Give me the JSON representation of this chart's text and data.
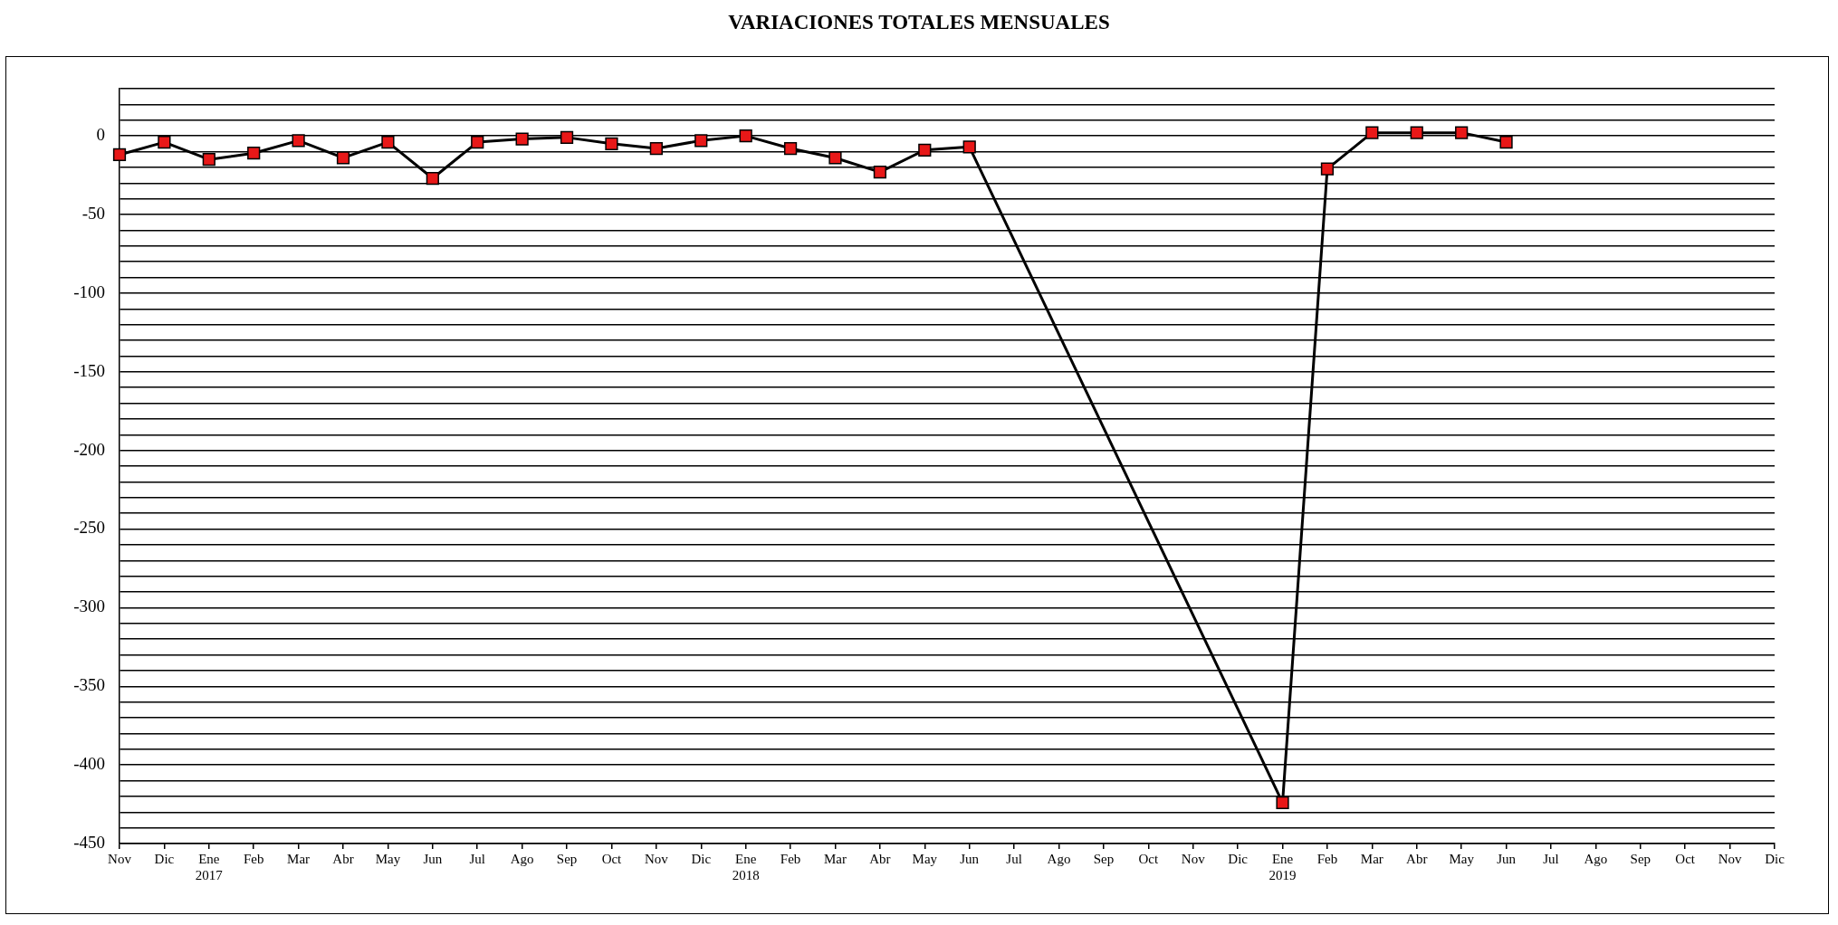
{
  "chart_data": {
    "type": "line",
    "title": "VARIACIONES TOTALES MENSUALES",
    "categories": [
      "Nov",
      "Dic",
      "Ene\n2017",
      "Feb",
      "Mar",
      "Abr",
      "May",
      "Jun",
      "Jul",
      "Ago",
      "Sep",
      "Oct",
      "Nov",
      "Dic",
      "Ene\n2018",
      "Feb",
      "Mar",
      "Abr",
      "May",
      "Jun",
      "Jul",
      "Ago",
      "Sep",
      "Oct",
      "Nov",
      "Dic",
      "Ene\n2019",
      "Feb",
      "Mar",
      "Abr",
      "May",
      "Jun",
      "Jul",
      "Ago",
      "Sep",
      "Oct",
      "Nov",
      "Dic"
    ],
    "series": [
      {
        "color": "#000000",
        "colors": [
          "#e81818",
          "#e81818",
          "#e81818",
          "#e81818",
          "#e81818",
          "#e81818",
          "#e81818",
          "#e81818",
          "#e81818",
          "#e81818",
          "#e81818",
          "#e81818",
          "#e81818",
          "#e81818",
          "#e81818",
          "#e81818",
          "#e81818",
          "#e81818",
          "#e81818",
          "#e81818",
          "#e81818",
          "#e81818",
          "#e81818",
          "#e81818",
          "#e81818",
          "#e81818",
          "#e81818",
          "#e81818",
          "#e81818",
          "#e81818",
          "#e81818",
          "#e81818",
          "#e81818",
          "#e81818",
          "#e81818",
          "#e81818",
          "#e81818",
          "#e81818"
        ],
        "values": [
          -12,
          -4,
          -15,
          -11,
          -3,
          -14,
          -4,
          -27,
          -4,
          -2,
          -1,
          -5,
          -8,
          -3,
          0,
          -8,
          -14,
          -23,
          -9,
          -7,
          null,
          null,
          null,
          null,
          null,
          null,
          -424,
          -21,
          2,
          2,
          2,
          -4,
          null,
          null,
          null,
          null,
          null,
          null
        ]
      }
    ],
    "ylim": [
      -450,
      30
    ],
    "yticks": [
      {
        "value": 30,
        "label": null
      },
      {
        "value": 20,
        "label": null
      },
      {
        "value": 10,
        "label": null
      },
      0,
      {
        "value": -10,
        "label": null
      },
      {
        "value": -20,
        "label": null
      },
      {
        "value": -30,
        "label": null
      },
      {
        "value": -40,
        "label": null
      },
      -50,
      {
        "value": -60,
        "label": null
      },
      {
        "value": -70,
        "label": null
      },
      {
        "value": -80,
        "label": null
      },
      {
        "value": -90,
        "label": null
      },
      -100,
      {
        "value": -110,
        "label": null
      },
      {
        "value": -120,
        "label": null
      },
      {
        "value": -130,
        "label": null
      },
      {
        "value": -140,
        "label": null
      },
      -150,
      {
        "value": -160,
        "label": null
      },
      {
        "value": -170,
        "label": null
      },
      {
        "value": -180,
        "label": null
      },
      {
        "value": -190,
        "label": null
      },
      -200,
      {
        "value": -210,
        "label": null
      },
      {
        "value": -220,
        "label": null
      },
      {
        "value": -230,
        "label": null
      },
      {
        "value": -240,
        "label": null
      },
      -250,
      {
        "value": -260,
        "label": null
      },
      {
        "value": -270,
        "label": null
      },
      {
        "value": -280,
        "label": null
      },
      {
        "value": -290,
        "label": null
      },
      -300,
      {
        "value": -310,
        "label": null
      },
      {
        "value": -320,
        "label": null
      },
      {
        "value": -330,
        "label": null
      },
      {
        "value": -340,
        "label": null
      },
      -350,
      {
        "value": -360,
        "label": null
      },
      {
        "value": -370,
        "label": null
      },
      {
        "value": -380,
        "label": null
      },
      {
        "value": -390,
        "label": null
      },
      -400,
      {
        "value": -410,
        "label": null
      },
      {
        "value": -420,
        "label": null
      },
      {
        "value": -430,
        "label": null
      },
      {
        "value": -440,
        "label": null
      },
      -450
    ],
    "grid": "y",
    "marker": "square",
    "line_style": "solid"
  }
}
